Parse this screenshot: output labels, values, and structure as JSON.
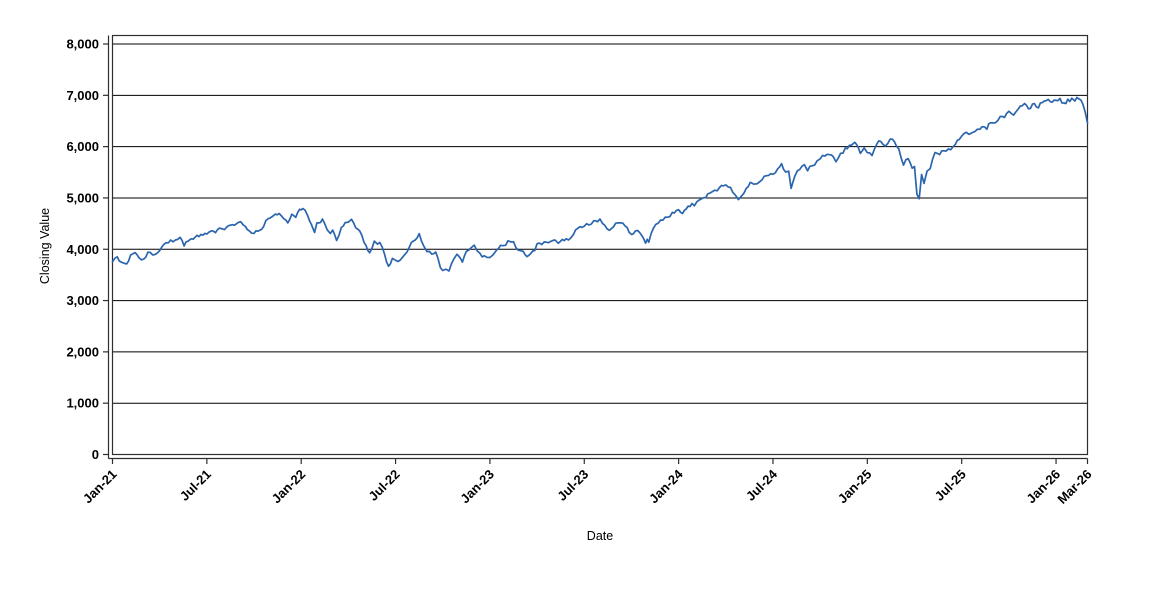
{
  "chart_data": {
    "type": "line",
    "title": "",
    "xlabel": "Date",
    "ylabel": "Closing Value",
    "legend": "none",
    "grid": "horizontal",
    "line_color": "#2b65ad",
    "grid_color": "#000000",
    "frame_color": "#2e2e2e",
    "text_color": "#000000",
    "ylim": [
      0,
      8000
    ],
    "x_range_months": [
      0,
      62
    ],
    "y_ticks": [
      {
        "v": 0,
        "label": "0"
      },
      {
        "v": 1000,
        "label": "1,000"
      },
      {
        "v": 2000,
        "label": "2,000"
      },
      {
        "v": 3000,
        "label": "3,000"
      },
      {
        "v": 4000,
        "label": "4,000"
      },
      {
        "v": 5000,
        "label": "5,000"
      },
      {
        "v": 6000,
        "label": "6,000"
      },
      {
        "v": 7000,
        "label": "7,000"
      },
      {
        "v": 8000,
        "label": "8,000"
      }
    ],
    "x_ticks": [
      {
        "m": 0,
        "label": "Jan-21"
      },
      {
        "m": 6,
        "label": "Jul-21"
      },
      {
        "m": 12,
        "label": "Jan-22"
      },
      {
        "m": 18,
        "label": "Jul-22"
      },
      {
        "m": 24,
        "label": "Jan-23"
      },
      {
        "m": 30,
        "label": "Jul-23"
      },
      {
        "m": 36,
        "label": "Jan-24"
      },
      {
        "m": 42,
        "label": "Jul-24"
      },
      {
        "m": 48,
        "label": "Jan-25"
      },
      {
        "m": 54,
        "label": "Jul-25"
      },
      {
        "m": 60,
        "label": "Jan-26"
      },
      {
        "m": 62,
        "label": "Mar-26"
      }
    ],
    "points": [
      [
        0,
        3756
      ],
      [
        0.3,
        3852
      ],
      [
        0.55,
        3750
      ],
      [
        0.9,
        3714
      ],
      [
        1.15,
        3886
      ],
      [
        1.45,
        3934
      ],
      [
        1.7,
        3829
      ],
      [
        2,
        3811
      ],
      [
        2.25,
        3943
      ],
      [
        2.55,
        3889
      ],
      [
        2.8,
        3913
      ],
      [
        3,
        3973
      ],
      [
        3.4,
        4128
      ],
      [
        3.7,
        4180
      ],
      [
        4,
        4181
      ],
      [
        4.3,
        4233
      ],
      [
        4.55,
        4063
      ],
      [
        4.8,
        4156
      ],
      [
        5,
        4204
      ],
      [
        5.5,
        4247
      ],
      [
        6,
        4298
      ],
      [
        6.3,
        4360
      ],
      [
        6.55,
        4323
      ],
      [
        6.8,
        4412
      ],
      [
        7,
        4395
      ],
      [
        7.5,
        4468
      ],
      [
        8,
        4523
      ],
      [
        8.15,
        4537
      ],
      [
        8.45,
        4444
      ],
      [
        8.7,
        4358
      ],
      [
        9,
        4308
      ],
      [
        9.25,
        4350
      ],
      [
        9.6,
        4438
      ],
      [
        9.9,
        4597
      ],
      [
        10,
        4605
      ],
      [
        10.35,
        4685
      ],
      [
        10.6,
        4697
      ],
      [
        10.9,
        4594
      ],
      [
        11.15,
        4513
      ],
      [
        11.4,
        4683
      ],
      [
        11.65,
        4621
      ],
      [
        11.9,
        4778
      ],
      [
        12,
        4766
      ],
      [
        12.1,
        4794
      ],
      [
        12.4,
        4663
      ],
      [
        12.65,
        4483
      ],
      [
        12.85,
        4326
      ],
      [
        13,
        4516
      ],
      [
        13.35,
        4589
      ],
      [
        13.65,
        4380
      ],
      [
        13.85,
        4306
      ],
      [
        14,
        4374
      ],
      [
        14.25,
        4170
      ],
      [
        14.55,
        4423
      ],
      [
        14.8,
        4520
      ],
      [
        15,
        4530
      ],
      [
        15.2,
        4583
      ],
      [
        15.6,
        4392
      ],
      [
        15.85,
        4272
      ],
      [
        16,
        4132
      ],
      [
        16.35,
        3930
      ],
      [
        16.65,
        4158
      ],
      [
        16.85,
        4101
      ],
      [
        17,
        4132
      ],
      [
        17.3,
        3900
      ],
      [
        17.55,
        3667
      ],
      [
        17.8,
        3821
      ],
      [
        18,
        3785
      ],
      [
        18.3,
        3790
      ],
      [
        18.6,
        3902
      ],
      [
        18.85,
        4023
      ],
      [
        19,
        4130
      ],
      [
        19.5,
        4305
      ],
      [
        19.8,
        4057
      ],
      [
        20,
        3955
      ],
      [
        20.3,
        3908
      ],
      [
        20.55,
        3946
      ],
      [
        20.85,
        3640
      ],
      [
        21,
        3586
      ],
      [
        21.2,
        3612
      ],
      [
        21.4,
        3577
      ],
      [
        21.7,
        3808
      ],
      [
        21.9,
        3901
      ],
      [
        22,
        3872
      ],
      [
        22.25,
        3749
      ],
      [
        22.5,
        3957
      ],
      [
        22.8,
        4027
      ],
      [
        23,
        4080
      ],
      [
        23.2,
        3963
      ],
      [
        23.5,
        3852
      ],
      [
        23.8,
        3844
      ],
      [
        24,
        3840
      ],
      [
        24.2,
        3892
      ],
      [
        24.55,
        4016
      ],
      [
        24.8,
        4070
      ],
      [
        25,
        4077
      ],
      [
        25.15,
        4164
      ],
      [
        25.5,
        4148
      ],
      [
        25.8,
        3982
      ],
      [
        26,
        3970
      ],
      [
        26.35,
        3856
      ],
      [
        26.6,
        3917
      ],
      [
        26.85,
        3971
      ],
      [
        27,
        4109
      ],
      [
        27.3,
        4092
      ],
      [
        27.6,
        4138
      ],
      [
        28,
        4169
      ],
      [
        28.35,
        4115
      ],
      [
        28.6,
        4192
      ],
      [
        28.85,
        4205
      ],
      [
        29,
        4180
      ],
      [
        29.3,
        4283
      ],
      [
        29.6,
        4410
      ],
      [
        29.85,
        4426
      ],
      [
        30,
        4450
      ],
      [
        30.3,
        4473
      ],
      [
        30.6,
        4555
      ],
      [
        30.85,
        4537
      ],
      [
        31,
        4589
      ],
      [
        31.3,
        4468
      ],
      [
        31.6,
        4370
      ],
      [
        31.85,
        4433
      ],
      [
        32,
        4508
      ],
      [
        32.3,
        4515
      ],
      [
        32.6,
        4451
      ],
      [
        32.85,
        4330
      ],
      [
        33,
        4288
      ],
      [
        33.25,
        4358
      ],
      [
        33.55,
        4314
      ],
      [
        33.9,
        4117
      ],
      [
        34,
        4194
      ],
      [
        34.1,
        4137
      ],
      [
        34.4,
        4415
      ],
      [
        34.7,
        4508
      ],
      [
        35,
        4568
      ],
      [
        35.3,
        4622
      ],
      [
        35.6,
        4719
      ],
      [
        35.85,
        4754
      ],
      [
        36,
        4770
      ],
      [
        36.25,
        4697
      ],
      [
        36.6,
        4840
      ],
      [
        36.85,
        4891
      ],
      [
        37,
        4846
      ],
      [
        37.3,
        4958
      ],
      [
        37.6,
        5006
      ],
      [
        37.85,
        5078
      ],
      [
        38,
        5096
      ],
      [
        38.3,
        5150
      ],
      [
        38.6,
        5204
      ],
      [
        38.85,
        5234
      ],
      [
        39,
        5254
      ],
      [
        39.3,
        5204
      ],
      [
        39.6,
        5062
      ],
      [
        39.8,
        4967
      ],
      [
        40,
        5036
      ],
      [
        40.3,
        5188
      ],
      [
        40.55,
        5303
      ],
      [
        40.8,
        5267
      ],
      [
        41,
        5278
      ],
      [
        41.3,
        5354
      ],
      [
        41.6,
        5433
      ],
      [
        41.85,
        5473
      ],
      [
        42,
        5460
      ],
      [
        42.3,
        5567
      ],
      [
        42.55,
        5667
      ],
      [
        42.8,
        5505
      ],
      [
        43,
        5522
      ],
      [
        43.15,
        5186
      ],
      [
        43.4,
        5434
      ],
      [
        43.7,
        5554
      ],
      [
        44,
        5648
      ],
      [
        44.2,
        5528
      ],
      [
        44.5,
        5626
      ],
      [
        44.8,
        5722
      ],
      [
        45,
        5762
      ],
      [
        45.3,
        5815
      ],
      [
        45.6,
        5842
      ],
      [
        45.85,
        5797
      ],
      [
        46,
        5705
      ],
      [
        46.3,
        5870
      ],
      [
        46.6,
        5973
      ],
      [
        46.85,
        6021
      ],
      [
        47,
        6032
      ],
      [
        47.2,
        6084
      ],
      [
        47.55,
        5867
      ],
      [
        47.8,
        5975
      ],
      [
        48,
        5882
      ],
      [
        48.3,
        5827
      ],
      [
        48.6,
        6049
      ],
      [
        48.85,
        6101
      ],
      [
        49,
        6041
      ],
      [
        49.3,
        6061
      ],
      [
        49.6,
        6144
      ],
      [
        49.85,
        6013
      ],
      [
        50,
        5955
      ],
      [
        50.3,
        5639
      ],
      [
        50.6,
        5767
      ],
      [
        50.85,
        5580
      ],
      [
        51,
        5612
      ],
      [
        51.15,
        5074
      ],
      [
        51.3,
        4983
      ],
      [
        51.45,
        5456
      ],
      [
        51.6,
        5283
      ],
      [
        51.8,
        5525
      ],
      [
        52,
        5569
      ],
      [
        52.3,
        5886
      ],
      [
        52.6,
        5844
      ],
      [
        52.85,
        5921
      ],
      [
        53,
        5912
      ],
      [
        53.3,
        5940
      ],
      [
        53.6,
        6045
      ],
      [
        53.85,
        6141
      ],
      [
        54,
        6205
      ],
      [
        54.3,
        6280
      ],
      [
        54.6,
        6260
      ],
      [
        54.85,
        6297
      ],
      [
        55,
        6339
      ],
      [
        55.3,
        6389
      ],
      [
        55.6,
        6340
      ],
      [
        55.85,
        6466
      ],
      [
        56,
        6460
      ],
      [
        56.3,
        6512
      ],
      [
        56.6,
        6587
      ],
      [
        56.85,
        6643
      ],
      [
        57,
        6688
      ],
      [
        57.3,
        6615
      ],
      [
        57.6,
        6735
      ],
      [
        57.85,
        6796
      ],
      [
        58,
        6840
      ],
      [
        58.25,
        6737
      ],
      [
        58.5,
        6829
      ],
      [
        58.75,
        6772
      ],
      [
        59,
        6849
      ],
      [
        59.25,
        6890
      ],
      [
        59.5,
        6920
      ],
      [
        59.75,
        6865
      ],
      [
        60,
        6900
      ],
      [
        60.25,
        6940
      ],
      [
        60.5,
        6850
      ],
      [
        60.75,
        6925
      ],
      [
        61,
        6944
      ],
      [
        61.2,
        6890
      ],
      [
        61.45,
        6930
      ],
      [
        61.7,
        6830
      ],
      [
        61.85,
        6680
      ],
      [
        62,
        6460
      ]
    ]
  }
}
